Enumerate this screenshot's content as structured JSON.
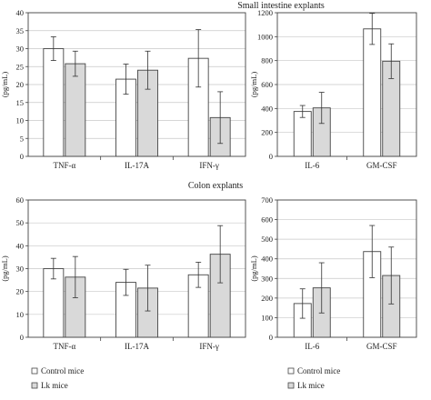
{
  "sections": {
    "top_title": "Small intestine explants",
    "bottom_title": "Colon explants"
  },
  "legend": {
    "control": "Control mice",
    "lk": "Lk mice"
  },
  "colors": {
    "control": "#ffffff",
    "lk": "#d9d9d9",
    "axis": "#444444",
    "grid": "#c8c8c8"
  },
  "chart_data": [
    {
      "type": "bar",
      "panel": "small-intestine-a",
      "title": "",
      "ylabel": "(pg/mL)",
      "ylim": [
        0,
        40
      ],
      "yticks": [
        0,
        5,
        10,
        15,
        20,
        25,
        30,
        35,
        40
      ],
      "categories": [
        "TNF-α",
        "IL-17A",
        "IFN-γ"
      ],
      "series": [
        {
          "name": "Control mice",
          "values": [
            30,
            21.5,
            27.3
          ],
          "errors": [
            3.3,
            4.2,
            8
          ]
        },
        {
          "name": "Lk mice",
          "values": [
            25.8,
            24,
            10.8
          ],
          "errors": [
            3.5,
            5.3,
            7.2
          ]
        }
      ],
      "grid": true
    },
    {
      "type": "bar",
      "panel": "small-intestine-b",
      "title": "",
      "ylabel": "(pg/mL)",
      "ylim": [
        0,
        1200
      ],
      "yticks": [
        0,
        200,
        400,
        600,
        800,
        1000,
        1200
      ],
      "categories": [
        "IL-6",
        "GM-CSF"
      ],
      "series": [
        {
          "name": "Control mice",
          "values": [
            375,
            1065
          ],
          "errors": [
            50,
            130
          ]
        },
        {
          "name": "Lk mice",
          "values": [
            405,
            795
          ],
          "errors": [
            130,
            145
          ]
        }
      ],
      "grid": true
    },
    {
      "type": "bar",
      "panel": "colon-a",
      "title": "",
      "ylabel": "(pg/mL)",
      "ylim": [
        0,
        60
      ],
      "yticks": [
        0,
        10,
        20,
        30,
        40,
        50,
        60
      ],
      "categories": [
        "TNF-α",
        "IL-17A",
        "IFN-γ"
      ],
      "series": [
        {
          "name": "Control mice",
          "values": [
            30,
            24,
            27.3
          ],
          "errors": [
            4.5,
            5.7,
            5.5
          ]
        },
        {
          "name": "Lk mice",
          "values": [
            26.3,
            21.5,
            36.3
          ],
          "errors": [
            9,
            10,
            12.5
          ]
        }
      ],
      "grid": true
    },
    {
      "type": "bar",
      "panel": "colon-b",
      "title": "",
      "ylabel": "(pg/mL)",
      "ylim": [
        0,
        700
      ],
      "yticks": [
        0,
        100,
        200,
        300,
        400,
        500,
        600,
        700
      ],
      "categories": [
        "IL-6",
        "GM-CSF"
      ],
      "series": [
        {
          "name": "Control mice",
          "values": [
            172,
            437
          ],
          "errors": [
            75,
            133
          ]
        },
        {
          "name": "Lk mice",
          "values": [
            252,
            315
          ],
          "errors": [
            128,
            145
          ]
        }
      ],
      "grid": true
    }
  ]
}
